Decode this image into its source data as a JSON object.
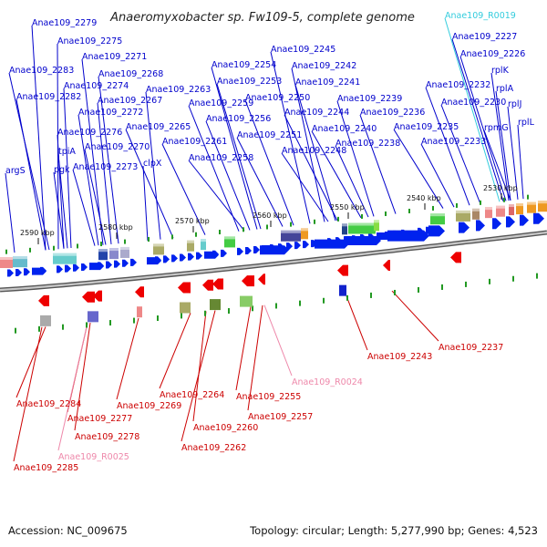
{
  "title": "Anaeromyxobacter sp. Fw109-5, complete genome",
  "accession": "Accession: NC_009675",
  "topology": "Topology: circular; Length: 5,277,990 bp; Genes: 4,523",
  "colors": {
    "forward_label": "#0000cc",
    "reverse_label": "#cc0000",
    "rna_label": "#33ccdd",
    "pseudo_label": "#ee88aa",
    "forward_arrow": "#0022ee",
    "reverse_arrow": "#ee0000",
    "backbone": "#888888",
    "tick": "#229922"
  },
  "scale_ticks": [
    "2590 kbp",
    "2580 kbp",
    "2570 kbp",
    "2560 kbp",
    "2550 kbp",
    "2540 kbp",
    "2530 kbp"
  ],
  "forward_labels": [
    "Anae109_2279",
    "Anae109_2275",
    "Anae109_2271",
    "Anae109_2283",
    "Anae109_2268",
    "Anae109_2274",
    "Anae109_2282",
    "Anae109_2263",
    "Anae109_2267",
    "Anae109_2272",
    "Anae109_2265",
    "Anae109_2276",
    "Anae109_2270",
    "Anae109_2261",
    "tpiA",
    "clpX",
    "Anae109_2273",
    "pgk",
    "argS",
    "Anae109_2254",
    "Anae109_2253",
    "Anae109_2259",
    "Anae109_2256",
    "Anae109_2258",
    "Anae109_2245",
    "Anae109_2242",
    "Anae109_2241",
    "Anae109_2250",
    "Anae109_2244",
    "Anae109_2251",
    "Anae109_2248",
    "Anae109_2239",
    "Anae109_2236",
    "Anae109_2240",
    "Anae109_2238",
    "Anae109_2235",
    "Anae109_2233",
    "Anae109_2232",
    "Anae109_2230",
    "Anae109_2227",
    "Anae109_2226",
    "rplK",
    "rplA",
    "rplJ",
    "rpmG",
    "rplL"
  ],
  "rna_labels": [
    "Anae109_R0019"
  ],
  "reverse_labels": [
    "Anae109_2284",
    "Anae109_2277",
    "Anae109_2278",
    "Anae109_2285",
    "Anae109_2269",
    "Anae109_2264",
    "Anae109_2260",
    "Anae109_2262",
    "Anae109_2255",
    "Anae109_2257",
    "Anae109_2243",
    "Anae109_2237"
  ],
  "pseudo_labels": [
    "Anae109_R0024",
    "Anae109_R0025"
  ]
}
